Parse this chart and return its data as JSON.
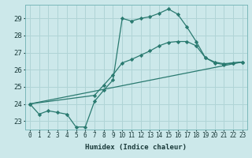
{
  "xlabel": "Humidex (Indice chaleur)",
  "xlim": [
    -0.5,
    23.5
  ],
  "ylim": [
    22.5,
    29.8
  ],
  "yticks": [
    23,
    24,
    25,
    26,
    27,
    28,
    29
  ],
  "xticks": [
    0,
    1,
    2,
    3,
    4,
    5,
    6,
    7,
    8,
    9,
    10,
    11,
    12,
    13,
    14,
    15,
    16,
    17,
    18,
    19,
    20,
    21,
    22,
    23
  ],
  "bg_color": "#cce8ea",
  "grid_color": "#b0d4d6",
  "line_color": "#2a7a70",
  "series1": {
    "x": [
      0,
      1,
      2,
      3,
      4,
      5,
      6,
      7,
      8,
      9,
      10,
      11,
      12,
      13,
      14,
      15,
      16,
      17,
      18,
      19,
      20,
      21,
      22,
      23
    ],
    "y": [
      24.0,
      23.4,
      23.6,
      23.5,
      23.4,
      22.65,
      22.65,
      24.15,
      24.8,
      25.4,
      29.0,
      28.85,
      29.0,
      29.1,
      29.3,
      29.55,
      29.25,
      28.5,
      27.65,
      26.7,
      26.4,
      26.3,
      26.4,
      26.45
    ]
  },
  "series2": {
    "x": [
      0,
      7,
      8,
      9,
      10,
      11,
      12,
      13,
      14,
      15,
      16,
      17,
      18,
      19,
      20,
      21,
      22,
      23
    ],
    "y": [
      24.0,
      24.5,
      25.1,
      25.7,
      26.4,
      26.6,
      26.85,
      27.1,
      27.4,
      27.6,
      27.65,
      27.65,
      27.4,
      26.7,
      26.45,
      26.35,
      26.4,
      26.45
    ]
  },
  "series3": {
    "x": [
      0,
      23
    ],
    "y": [
      24.0,
      26.45
    ]
  }
}
